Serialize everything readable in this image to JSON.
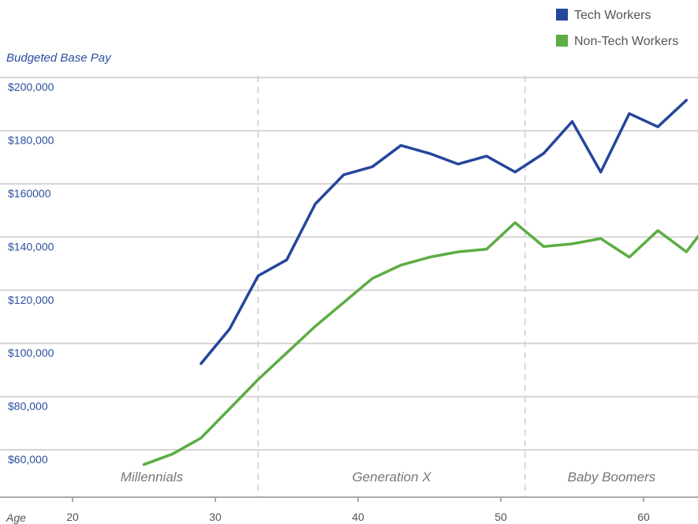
{
  "chart_data": {
    "type": "line",
    "ylabel": "Budgeted Base Pay",
    "xlabel": "Age",
    "xlim": [
      15,
      64
    ],
    "ylim": [
      55000,
      205000
    ],
    "x_ticks": [
      20,
      30,
      40,
      50,
      60
    ],
    "y_ticks": [
      {
        "value": 60000,
        "label": "$60,000"
      },
      {
        "value": 80000,
        "label": "$80,000"
      },
      {
        "value": 100000,
        "label": "$100,000"
      },
      {
        "value": 120000,
        "label": "$120,000"
      },
      {
        "value": 140000,
        "label": "$140,000"
      },
      {
        "value": 160000,
        "label": "$160000"
      },
      {
        "value": 180000,
        "label": "$180,000"
      },
      {
        "value": 200000,
        "label": "$200,000"
      }
    ],
    "grid": true,
    "legend_position": "top-right",
    "series": [
      {
        "name": "Tech Workers",
        "color": "#25479b",
        "points": [
          [
            29,
            96000
          ],
          [
            31,
            109000
          ],
          [
            33,
            129000
          ],
          [
            35,
            135000
          ],
          [
            37,
            156000
          ],
          [
            39,
            167000
          ],
          [
            41,
            170000
          ],
          [
            43,
            178000
          ],
          [
            45,
            175000
          ],
          [
            47,
            171000
          ],
          [
            49,
            174000
          ],
          [
            51,
            168000
          ],
          [
            53,
            175000
          ],
          [
            55,
            187000
          ],
          [
            57,
            168000
          ],
          [
            59,
            190000
          ],
          [
            61,
            185000
          ],
          [
            63,
            195000
          ]
        ]
      },
      {
        "name": "Non-Tech Workers",
        "color": "#5cad43",
        "points": [
          [
            25,
            58000
          ],
          [
            27,
            62000
          ],
          [
            29,
            68000
          ],
          [
            31,
            79000
          ],
          [
            33,
            90000
          ],
          [
            35,
            100000
          ],
          [
            37,
            110000
          ],
          [
            39,
            119000
          ],
          [
            41,
            128000
          ],
          [
            43,
            133000
          ],
          [
            45,
            136000
          ],
          [
            47,
            138000
          ],
          [
            49,
            139000
          ],
          [
            51,
            149000
          ],
          [
            53,
            140000
          ],
          [
            55,
            141000
          ],
          [
            57,
            143000
          ],
          [
            59,
            136000
          ],
          [
            61,
            146000
          ],
          [
            63,
            138000
          ],
          [
            64,
            145000
          ]
        ]
      }
    ],
    "regions": [
      {
        "label": "Millennials",
        "from": 15,
        "to": 33
      },
      {
        "label": "Generation X",
        "from": 33,
        "to": 51.7
      },
      {
        "label": "Baby Boomers",
        "from": 51.7,
        "to": 64
      }
    ]
  }
}
